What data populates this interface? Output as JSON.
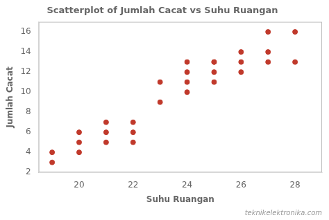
{
  "chart_data": {
    "type": "scatter",
    "title": "Scatterplot of Jumlah Cacat vs Suhu Ruangan",
    "xlabel": "Suhu Ruangan",
    "ylabel": "Jumlah Cacat",
    "x": [
      19,
      19,
      20,
      20,
      20,
      21,
      21,
      21,
      22,
      22,
      22,
      23,
      23,
      24,
      24,
      24,
      24,
      25,
      25,
      25,
      25,
      26,
      26,
      26,
      27,
      27,
      27,
      28,
      28
    ],
    "values": [
      3,
      4,
      4,
      5,
      6,
      5,
      6,
      7,
      5,
      6,
      7,
      9,
      11,
      10,
      11,
      12,
      13,
      11,
      12,
      13,
      13,
      12,
      13,
      14,
      14,
      13,
      16,
      13,
      16
    ],
    "color": "#c0392b",
    "xlim": [
      18.5,
      29
    ],
    "ylim": [
      2,
      17
    ],
    "xticks": [
      20,
      22,
      24,
      26,
      28
    ],
    "yticks": [
      2,
      4,
      6,
      8,
      10,
      12,
      14,
      16
    ],
    "grid": false,
    "annotations": [
      "teknikelektronika.com"
    ]
  }
}
